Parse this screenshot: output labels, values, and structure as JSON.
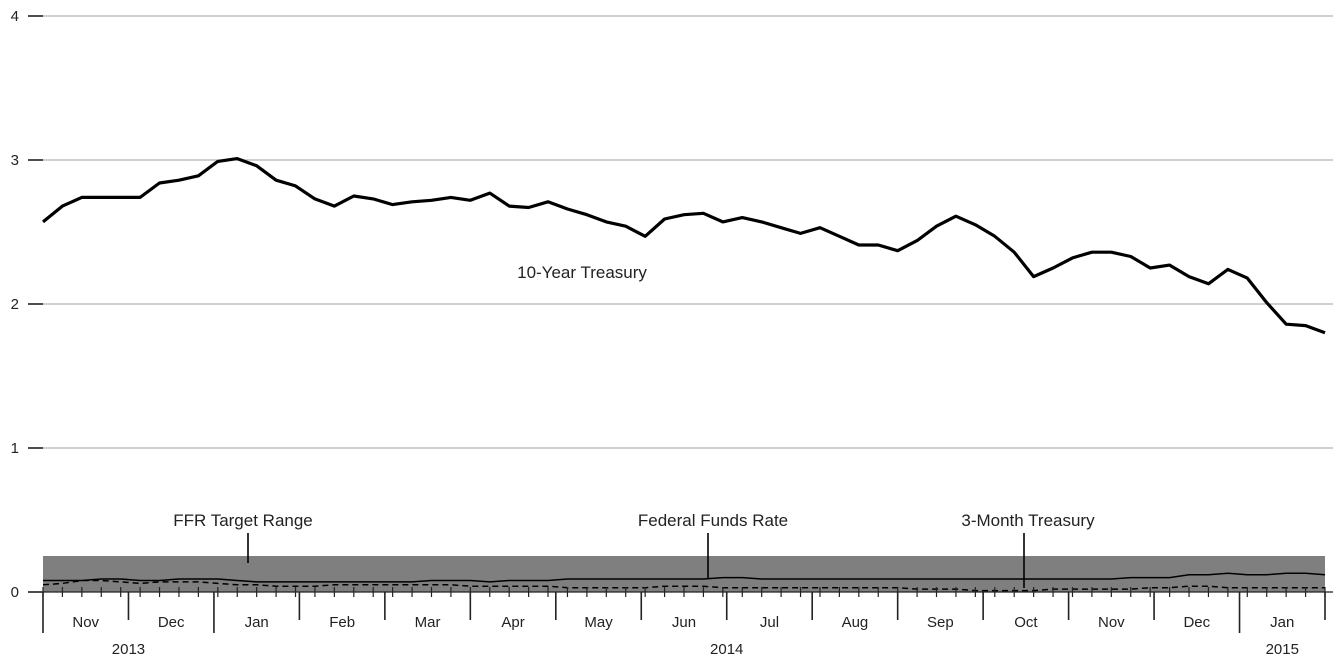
{
  "chart_data": {
    "type": "line",
    "title": "",
    "xlabel": "",
    "ylabel": "",
    "ylim": [
      0,
      4
    ],
    "yticks": [
      "0",
      "1",
      "2",
      "3",
      "4"
    ],
    "grid": true,
    "months": [
      "Nov",
      "Dec",
      "Jan",
      "Feb",
      "Mar",
      "Apr",
      "May",
      "Jun",
      "Jul",
      "Aug",
      "Sep",
      "Oct",
      "Nov",
      "Dec",
      "Jan"
    ],
    "years": [
      "2013",
      "2014",
      "2015"
    ],
    "target_range": {
      "name": "FFR Target Range",
      "low": 0,
      "high": 0.25,
      "color": "#7f7f7f"
    },
    "series": [
      {
        "name": "10-Year Treasury",
        "style": "solid-thick",
        "values": [
          2.57,
          2.68,
          2.74,
          2.74,
          2.74,
          2.74,
          2.84,
          2.86,
          2.89,
          2.99,
          3.01,
          2.96,
          2.86,
          2.82,
          2.73,
          2.68,
          2.75,
          2.73,
          2.69,
          2.71,
          2.72,
          2.74,
          2.72,
          2.77,
          2.68,
          2.67,
          2.71,
          2.66,
          2.62,
          2.57,
          2.54,
          2.47,
          2.59,
          2.62,
          2.63,
          2.57,
          2.6,
          2.57,
          2.53,
          2.49,
          2.53,
          2.47,
          2.41,
          2.41,
          2.37,
          2.44,
          2.54,
          2.61,
          2.55,
          2.47,
          2.36,
          2.19,
          2.25,
          2.32,
          2.36,
          2.36,
          2.33,
          2.25,
          2.27,
          2.19,
          2.14,
          2.24,
          2.18,
          2.01,
          1.86,
          1.85,
          1.8
        ]
      },
      {
        "name": "Federal Funds Rate",
        "style": "solid-thin",
        "values": [
          0.08,
          0.08,
          0.08,
          0.09,
          0.09,
          0.08,
          0.08,
          0.09,
          0.09,
          0.09,
          0.08,
          0.07,
          0.07,
          0.07,
          0.07,
          0.07,
          0.07,
          0.07,
          0.07,
          0.07,
          0.08,
          0.08,
          0.08,
          0.07,
          0.08,
          0.08,
          0.08,
          0.09,
          0.09,
          0.09,
          0.09,
          0.09,
          0.09,
          0.09,
          0.09,
          0.1,
          0.1,
          0.09,
          0.09,
          0.09,
          0.09,
          0.09,
          0.09,
          0.09,
          0.09,
          0.09,
          0.09,
          0.09,
          0.09,
          0.09,
          0.09,
          0.09,
          0.09,
          0.09,
          0.09,
          0.09,
          0.1,
          0.1,
          0.1,
          0.12,
          0.12,
          0.13,
          0.12,
          0.12,
          0.13,
          0.13,
          0.12
        ]
      },
      {
        "name": "3-Month Treasury",
        "style": "dashed",
        "values": [
          0.05,
          0.06,
          0.08,
          0.08,
          0.07,
          0.06,
          0.07,
          0.07,
          0.07,
          0.06,
          0.05,
          0.05,
          0.04,
          0.04,
          0.04,
          0.05,
          0.05,
          0.05,
          0.05,
          0.05,
          0.05,
          0.05,
          0.04,
          0.04,
          0.04,
          0.04,
          0.04,
          0.03,
          0.03,
          0.03,
          0.03,
          0.03,
          0.04,
          0.04,
          0.04,
          0.03,
          0.03,
          0.03,
          0.03,
          0.03,
          0.03,
          0.03,
          0.03,
          0.03,
          0.03,
          0.02,
          0.02,
          0.02,
          0.01,
          0.01,
          0.01,
          0.01,
          0.02,
          0.02,
          0.02,
          0.02,
          0.02,
          0.03,
          0.03,
          0.04,
          0.04,
          0.03,
          0.03,
          0.03,
          0.03,
          0.03,
          0.03
        ]
      }
    ]
  }
}
